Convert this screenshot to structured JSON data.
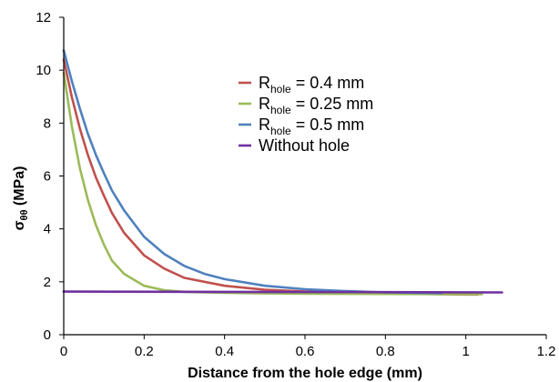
{
  "chart_data": {
    "type": "line",
    "xlabel": "Distance from the hole edge (mm)",
    "ylabel": {
      "main": "σ",
      "sub": "θθ",
      "rest": " (MPa)"
    },
    "xlim": [
      0,
      1.2
    ],
    "ylim": [
      0,
      12
    ],
    "x_ticks": [
      "0",
      "0.2",
      "0.4",
      "0.6",
      "0.8",
      "1",
      "1.2"
    ],
    "y_ticks": [
      "0",
      "2",
      "4",
      "6",
      "8",
      "10",
      "12"
    ],
    "grid": false,
    "legend_position": "center-top",
    "series": [
      {
        "name": {
          "main": "R",
          "sub": "hole",
          "rest": " = 0.4 mm"
        },
        "color": "#c0504d",
        "points": [
          [
            0,
            10.4
          ],
          [
            0.02,
            9.0
          ],
          [
            0.04,
            7.8
          ],
          [
            0.06,
            6.8
          ],
          [
            0.08,
            5.95
          ],
          [
            0.1,
            5.25
          ],
          [
            0.12,
            4.6
          ],
          [
            0.15,
            3.85
          ],
          [
            0.2,
            3.0
          ],
          [
            0.25,
            2.5
          ],
          [
            0.3,
            2.15
          ],
          [
            0.4,
            1.85
          ],
          [
            0.5,
            1.7
          ],
          [
            0.6,
            1.63
          ],
          [
            0.7,
            1.58
          ],
          [
            0.8,
            1.56
          ],
          [
            0.9,
            1.54
          ],
          [
            1.0,
            1.52
          ],
          [
            1.03,
            1.52
          ]
        ]
      },
      {
        "name": {
          "main": "R",
          "sub": "hole",
          "rest": " = 0.25 mm"
        },
        "color": "#9bbb59",
        "points": [
          [
            0,
            9.9
          ],
          [
            0.02,
            7.9
          ],
          [
            0.04,
            6.3
          ],
          [
            0.06,
            5.1
          ],
          [
            0.08,
            4.15
          ],
          [
            0.1,
            3.4
          ],
          [
            0.12,
            2.8
          ],
          [
            0.15,
            2.3
          ],
          [
            0.2,
            1.85
          ],
          [
            0.25,
            1.68
          ],
          [
            0.3,
            1.62
          ],
          [
            0.4,
            1.58
          ],
          [
            0.5,
            1.56
          ],
          [
            0.6,
            1.55
          ],
          [
            0.8,
            1.54
          ],
          [
            1.0,
            1.53
          ],
          [
            1.04,
            1.53
          ]
        ]
      },
      {
        "name": {
          "main": "R",
          "sub": "hole",
          "rest": " = 0.5 mm"
        },
        "color": "#4f81bd",
        "points": [
          [
            0,
            10.75
          ],
          [
            0.02,
            9.6
          ],
          [
            0.04,
            8.55
          ],
          [
            0.06,
            7.6
          ],
          [
            0.08,
            6.8
          ],
          [
            0.1,
            6.1
          ],
          [
            0.12,
            5.45
          ],
          [
            0.15,
            4.7
          ],
          [
            0.2,
            3.7
          ],
          [
            0.25,
            3.05
          ],
          [
            0.3,
            2.6
          ],
          [
            0.35,
            2.3
          ],
          [
            0.4,
            2.1
          ],
          [
            0.5,
            1.85
          ],
          [
            0.6,
            1.72
          ],
          [
            0.7,
            1.65
          ],
          [
            0.8,
            1.6
          ],
          [
            0.94,
            1.57
          ]
        ]
      },
      {
        "name": {
          "main": "Without hole",
          "sub": "",
          "rest": ""
        },
        "color": "#7030a0",
        "points": [
          [
            0,
            1.63
          ],
          [
            0.4,
            1.62
          ],
          [
            0.8,
            1.61
          ],
          [
            1.09,
            1.6
          ]
        ]
      }
    ]
  }
}
